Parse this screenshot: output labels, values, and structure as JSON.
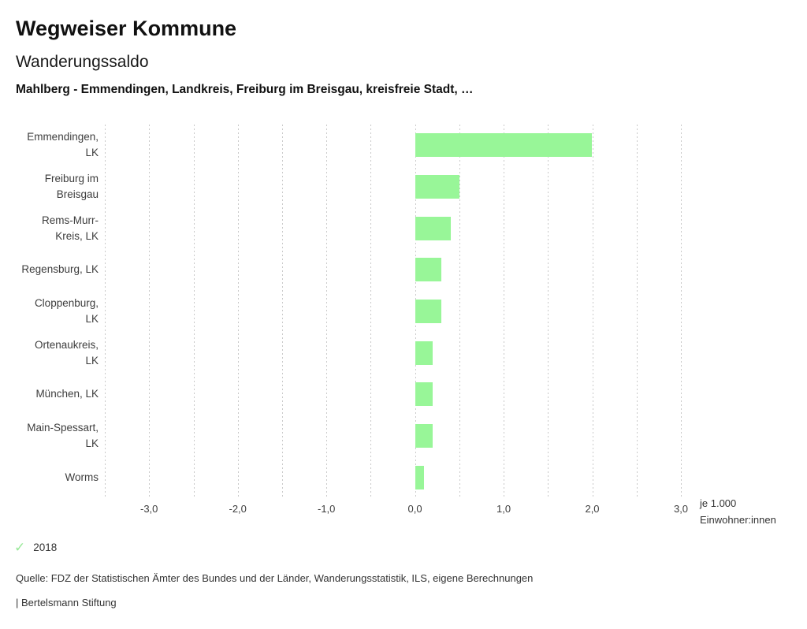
{
  "header": {
    "title": "Wegweiser Kommune",
    "subtitle": "Wanderungssaldo",
    "comparison": "Mahlberg - Emmendingen, Landkreis, Freiburg im Breisgau, kreisfreie Stadt, …"
  },
  "chart_data": {
    "type": "bar",
    "orientation": "horizontal",
    "title": "Wanderungssaldo",
    "categories": [
      "Emmendingen, LK",
      "Freiburg im Breisgau",
      "Rems-Murr-Kreis, LK",
      "Regensburg, LK",
      "Cloppenburg, LK",
      "Ortenaukreis, LK",
      "München, LK",
      "Main-Spessart, LK",
      "Worms"
    ],
    "category_label_lines": [
      [
        "Emmendingen,",
        "LK"
      ],
      [
        "Freiburg im",
        "Breisgau"
      ],
      [
        "Rems-Murr-",
        "Kreis, LK"
      ],
      [
        "Regensburg, LK"
      ],
      [
        "Cloppenburg,",
        "LK"
      ],
      [
        "Ortenaukreis,",
        "LK"
      ],
      [
        "München, LK"
      ],
      [
        "Main-Spessart,",
        "LK"
      ],
      [
        "Worms"
      ]
    ],
    "series": [
      {
        "name": "2018",
        "values": [
          2.0,
          0.5,
          0.4,
          0.3,
          0.3,
          0.2,
          0.2,
          0.2,
          0.1
        ]
      }
    ],
    "xlabel": "je 1.000 Einwohner:innen",
    "xlabel_lines": [
      "je 1.000",
      "Einwohner:innen"
    ],
    "xlim": [
      -3.5,
      3.0
    ],
    "x_ticks": [
      -3,
      -2,
      -1,
      0,
      1,
      2,
      3
    ],
    "x_tick_labels": [
      "-3,0",
      "-2,0",
      "-1,0",
      "0,0",
      "1,0",
      "2,0",
      "3,0"
    ],
    "gridline_step": 0.5,
    "grid": "dotted-vertical",
    "bar_color": "#98f698",
    "gridline_color": "#c9c9c9",
    "legend": {
      "position": "bottom-left",
      "entries": [
        {
          "marker": "check-icon",
          "label": "2018",
          "color": "#98e898"
        }
      ]
    }
  },
  "icons": {
    "check": "✓"
  },
  "footer": {
    "source": "Quelle: FDZ der Statistischen Ämter des Bundes und der Länder, Wanderungsstatistik, ILS, eigene Berechnungen",
    "brand": "| Bertelsmann Stiftung"
  }
}
